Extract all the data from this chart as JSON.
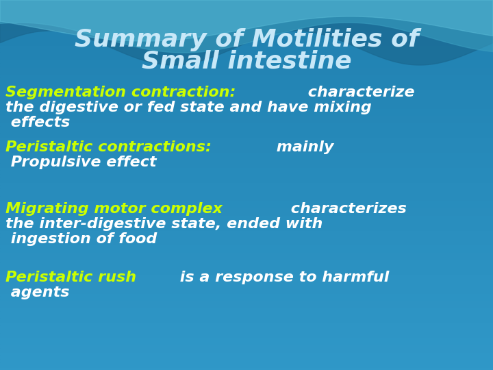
{
  "title_line1": "Summary of Motilities of",
  "title_line2": "Small intestine",
  "title_color": "#c8e8f8",
  "title_fontsize": 26,
  "bg_color": "#2080b0",
  "wave_colors": [
    "#3a9ac8",
    "#4ab0d8",
    "#60c0e0"
  ],
  "bullet_items": [
    {
      "yellow_text": "Segmentation contraction:",
      "white_lines": [
        " characterize",
        "the digestive or fed state and have mixing",
        " effects"
      ]
    },
    {
      "yellow_text": "Peristaltic contractions:",
      "white_lines": [
        " mainly",
        " Propulsive effect"
      ]
    },
    {
      "yellow_text": "Migrating motor complex",
      "white_lines": [
        " characterizes",
        "the inter-digestive state, ended with",
        " ingestion of food"
      ]
    },
    {
      "yellow_text": "Peristaltic rush",
      "white_lines": [
        " is a response to harmful",
        " agents"
      ]
    }
  ],
  "yellow_color": "#ccff00",
  "white_color": "#ffffff",
  "body_fontsize": 16
}
